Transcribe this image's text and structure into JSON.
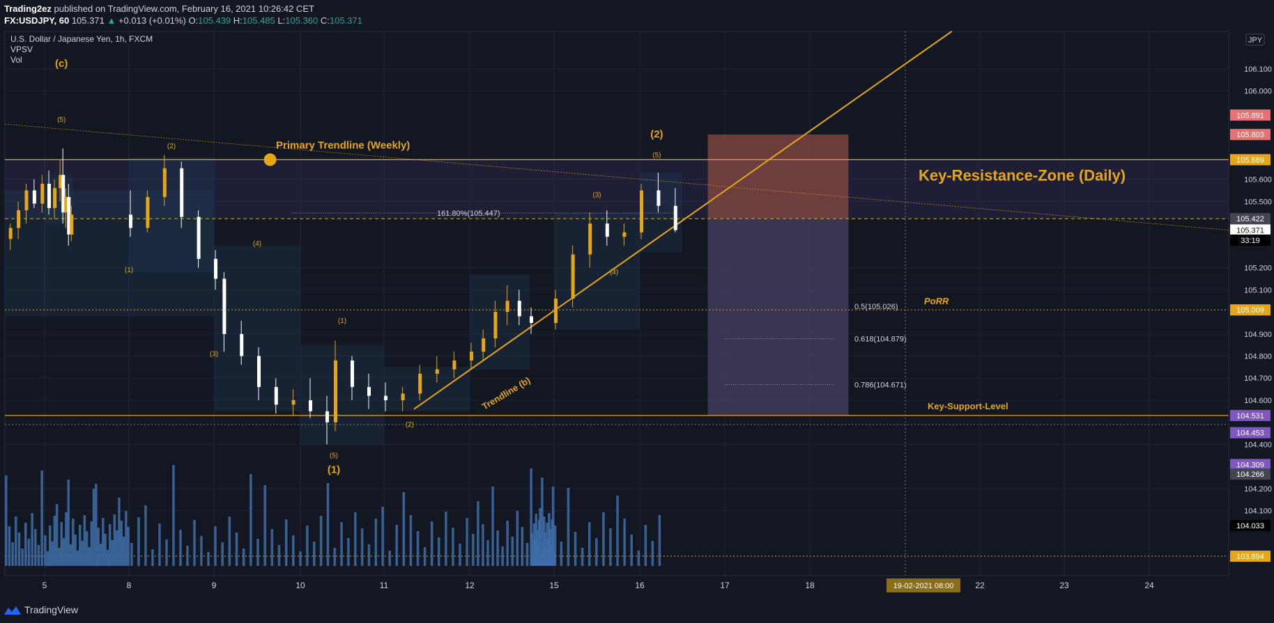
{
  "header": {
    "publisher": "Trading2ez",
    "published_text": "published on TradingView.com, February 16, 2021 10:26:42 CET",
    "symbol": "FX:USDJPY, 60",
    "last": "105.371",
    "change_arrow": "▲",
    "change": "+0.013 (+0.01%)",
    "o_label": "O:",
    "o": "105.439",
    "h_label": "H:",
    "h": "105.485",
    "l_label": "L:",
    "l": "105.360",
    "c_label": "C:",
    "c": "105.371"
  },
  "legend": {
    "title": "U.S. Dollar / Japanese Yen, 1h, FXCM",
    "indicator1": "VPSV",
    "indicator2": "Vol",
    "currency": "JPY"
  },
  "footer": {
    "logo_text": "TradingView"
  },
  "colors": {
    "background": "#131722",
    "gold": "#e5a718",
    "candle_up": "#e5a718",
    "candle_down": "#ffffff",
    "volume": "#3f6ea8",
    "grid": "#1e2433",
    "resistance_zone": "#2d2850",
    "short_risk": "#7a4440",
    "short_target": "#403c5a"
  },
  "chart_data": {
    "type": "candlestick",
    "symbol": "USDJPY",
    "timeframe": "1h",
    "ylim": [
      103.85,
      106.27
    ],
    "y_ticks": [
      106.1,
      106.0,
      105.6,
      105.5,
      105.2,
      105.1,
      104.9,
      104.8,
      104.7,
      104.6,
      104.4,
      104.2,
      104.1
    ],
    "x_ticks": [
      {
        "label": "5",
        "day": 5
      },
      {
        "label": "8",
        "day": 8
      },
      {
        "label": "9",
        "day": 9
      },
      {
        "label": "10",
        "day": 10
      },
      {
        "label": "11",
        "day": 11
      },
      {
        "label": "12",
        "day": 12
      },
      {
        "label": "15",
        "day": 15
      },
      {
        "label": "16",
        "day": 16
      },
      {
        "label": "17",
        "day": 17
      },
      {
        "label": "18",
        "day": 18
      },
      {
        "label": "22",
        "day": 22
      },
      {
        "label": "23",
        "day": 23
      },
      {
        "label": "24",
        "day": 24
      }
    ],
    "cursor_label": "19-02-2021    08:00",
    "price_tags": [
      {
        "value": "105.891",
        "price": 105.891,
        "color": "#e57373"
      },
      {
        "value": "105.803",
        "price": 105.803,
        "color": "#e57373"
      },
      {
        "value": "105.689",
        "price": 105.689,
        "color": "#e5a718"
      },
      {
        "value": "105.422",
        "price": 105.422,
        "color": "#434651"
      },
      {
        "value": "105.371",
        "price": 105.371,
        "color": "#ffffff"
      },
      {
        "value": "33:19",
        "price": 105.325,
        "color": "#000000"
      },
      {
        "value": "105.009",
        "price": 105.009,
        "color": "#e5a718"
      },
      {
        "value": "104.531",
        "price": 104.531,
        "color": "#7e57c2"
      },
      {
        "value": "104.453",
        "price": 104.453,
        "color": "#7e57c2"
      },
      {
        "value": "104.309",
        "price": 104.309,
        "color": "#7e57c2"
      },
      {
        "value": "104.266",
        "price": 104.266,
        "color": "#434651"
      },
      {
        "value": "104.033",
        "price": 104.033,
        "color": "#000000"
      },
      {
        "value": "103.894",
        "price": 103.894,
        "color": "#e5a718"
      }
    ],
    "levels": [
      {
        "name": "Primary Trendline (Weekly)",
        "price": 105.689
      },
      {
        "name": "Key-Resistance-Zone (Daily)",
        "from": 105.422,
        "to": 105.689
      },
      {
        "name": "PoRR",
        "price": 105.009
      },
      {
        "name": "Key-Support-Level",
        "price": 104.531
      }
    ],
    "fib_labels": [
      {
        "text": "161.80%(105.447)",
        "price": 105.447
      },
      {
        "text": "0.5(105.026)",
        "price": 105.026
      },
      {
        "text": "0.618(104.879)",
        "price": 104.879
      },
      {
        "text": "0.786(104.671)",
        "price": 104.671
      }
    ],
    "trendline_label": "Trendline (b)",
    "wave_labels": [
      {
        "text": "(c)",
        "day": 5.6,
        "price": 106.11
      },
      {
        "text": "(5)",
        "day": 5.6,
        "price": 105.86
      },
      {
        "text": "(2)",
        "day": 8.5,
        "price": 105.74
      },
      {
        "text": "(1)",
        "day": 8.0,
        "price": 105.18
      },
      {
        "text": "(4)",
        "day": 9.5,
        "price": 105.3
      },
      {
        "text": "(3)",
        "day": 9.0,
        "price": 104.8
      },
      {
        "text": "(1)",
        "day": 10.5,
        "price": 104.95
      },
      {
        "text": "(5)",
        "day": 10.4,
        "price": 104.34
      },
      {
        "text": "(1)",
        "day": 10.4,
        "price": 104.27
      },
      {
        "text": "(2)",
        "day": 11.3,
        "price": 104.48
      },
      {
        "text": "(3)",
        "day": 15.5,
        "price": 105.52
      },
      {
        "text": "(4)",
        "day": 15.7,
        "price": 105.17
      },
      {
        "text": "(2)",
        "day": 16.2,
        "price": 105.79
      },
      {
        "text": "(5)",
        "day": 16.2,
        "price": 105.7
      }
    ],
    "candles": [
      [
        4.1,
        105.33,
        105.4,
        105.28,
        105.38
      ],
      [
        4.3,
        105.38,
        105.5,
        105.33,
        105.46
      ],
      [
        4.5,
        105.46,
        105.58,
        105.4,
        105.55
      ],
      [
        4.7,
        105.55,
        105.6,
        105.47,
        105.49
      ],
      [
        4.9,
        105.49,
        105.62,
        105.45,
        105.58
      ],
      [
        5.1,
        105.58,
        105.64,
        105.44,
        105.47
      ],
      [
        5.3,
        105.47,
        105.6,
        105.42,
        105.56
      ],
      [
        5.5,
        105.56,
        105.69,
        105.5,
        105.62
      ],
      [
        5.6,
        105.62,
        105.74,
        105.4,
        105.45
      ],
      [
        5.7,
        105.45,
        105.56,
        105.38,
        105.52
      ],
      [
        5.8,
        105.52,
        105.58,
        105.3,
        105.35
      ],
      [
        5.9,
        105.35,
        105.48,
        105.32,
        105.44
      ],
      [
        8.0,
        105.44,
        105.55,
        105.34,
        105.38
      ],
      [
        8.2,
        105.38,
        105.55,
        105.36,
        105.52
      ],
      [
        8.4,
        105.52,
        105.71,
        105.48,
        105.65
      ],
      [
        8.6,
        105.65,
        105.68,
        105.38,
        105.43
      ],
      [
        8.8,
        105.43,
        105.46,
        105.2,
        105.24
      ],
      [
        9.0,
        105.24,
        105.28,
        105.1,
        105.15
      ],
      [
        9.1,
        105.15,
        105.18,
        104.82,
        104.9
      ],
      [
        9.3,
        104.9,
        104.96,
        104.76,
        104.8
      ],
      [
        9.5,
        104.8,
        104.84,
        104.6,
        104.66
      ],
      [
        9.7,
        104.66,
        104.7,
        104.54,
        104.58
      ],
      [
        9.9,
        104.58,
        104.65,
        104.53,
        104.6
      ],
      [
        10.1,
        104.6,
        104.7,
        104.52,
        104.55
      ],
      [
        10.3,
        104.55,
        104.62,
        104.4,
        104.5
      ],
      [
        10.4,
        104.5,
        104.87,
        104.46,
        104.78
      ],
      [
        10.6,
        104.78,
        104.8,
        104.6,
        104.66
      ],
      [
        10.8,
        104.66,
        104.72,
        104.56,
        104.62
      ],
      [
        11.0,
        104.62,
        104.68,
        104.55,
        104.6
      ],
      [
        11.2,
        104.6,
        104.66,
        104.55,
        104.63
      ],
      [
        11.4,
        104.63,
        104.76,
        104.6,
        104.72
      ],
      [
        11.6,
        104.72,
        104.8,
        104.68,
        104.74
      ],
      [
        11.8,
        104.74,
        104.82,
        104.7,
        104.78
      ],
      [
        12.0,
        104.78,
        104.86,
        104.74,
        104.82
      ],
      [
        12.2,
        104.82,
        104.92,
        104.78,
        104.88
      ],
      [
        12.4,
        104.88,
        105.05,
        104.84,
        105.0
      ],
      [
        12.6,
        105.0,
        105.12,
        104.94,
        105.05
      ],
      [
        12.8,
        105.05,
        105.1,
        104.94,
        104.98
      ],
      [
        13.0,
        104.98,
        105.02,
        104.9,
        104.95
      ],
      [
        15.0,
        104.95,
        105.1,
        104.92,
        105.06
      ],
      [
        15.2,
        105.06,
        105.3,
        105.02,
        105.26
      ],
      [
        15.4,
        105.26,
        105.45,
        105.2,
        105.4
      ],
      [
        15.6,
        105.4,
        105.46,
        105.3,
        105.34
      ],
      [
        15.8,
        105.34,
        105.4,
        105.3,
        105.36
      ],
      [
        16.0,
        105.36,
        105.58,
        105.33,
        105.55
      ],
      [
        16.2,
        105.55,
        105.63,
        105.45,
        105.48
      ],
      [
        16.4,
        105.48,
        105.56,
        105.36,
        105.37
      ]
    ]
  }
}
